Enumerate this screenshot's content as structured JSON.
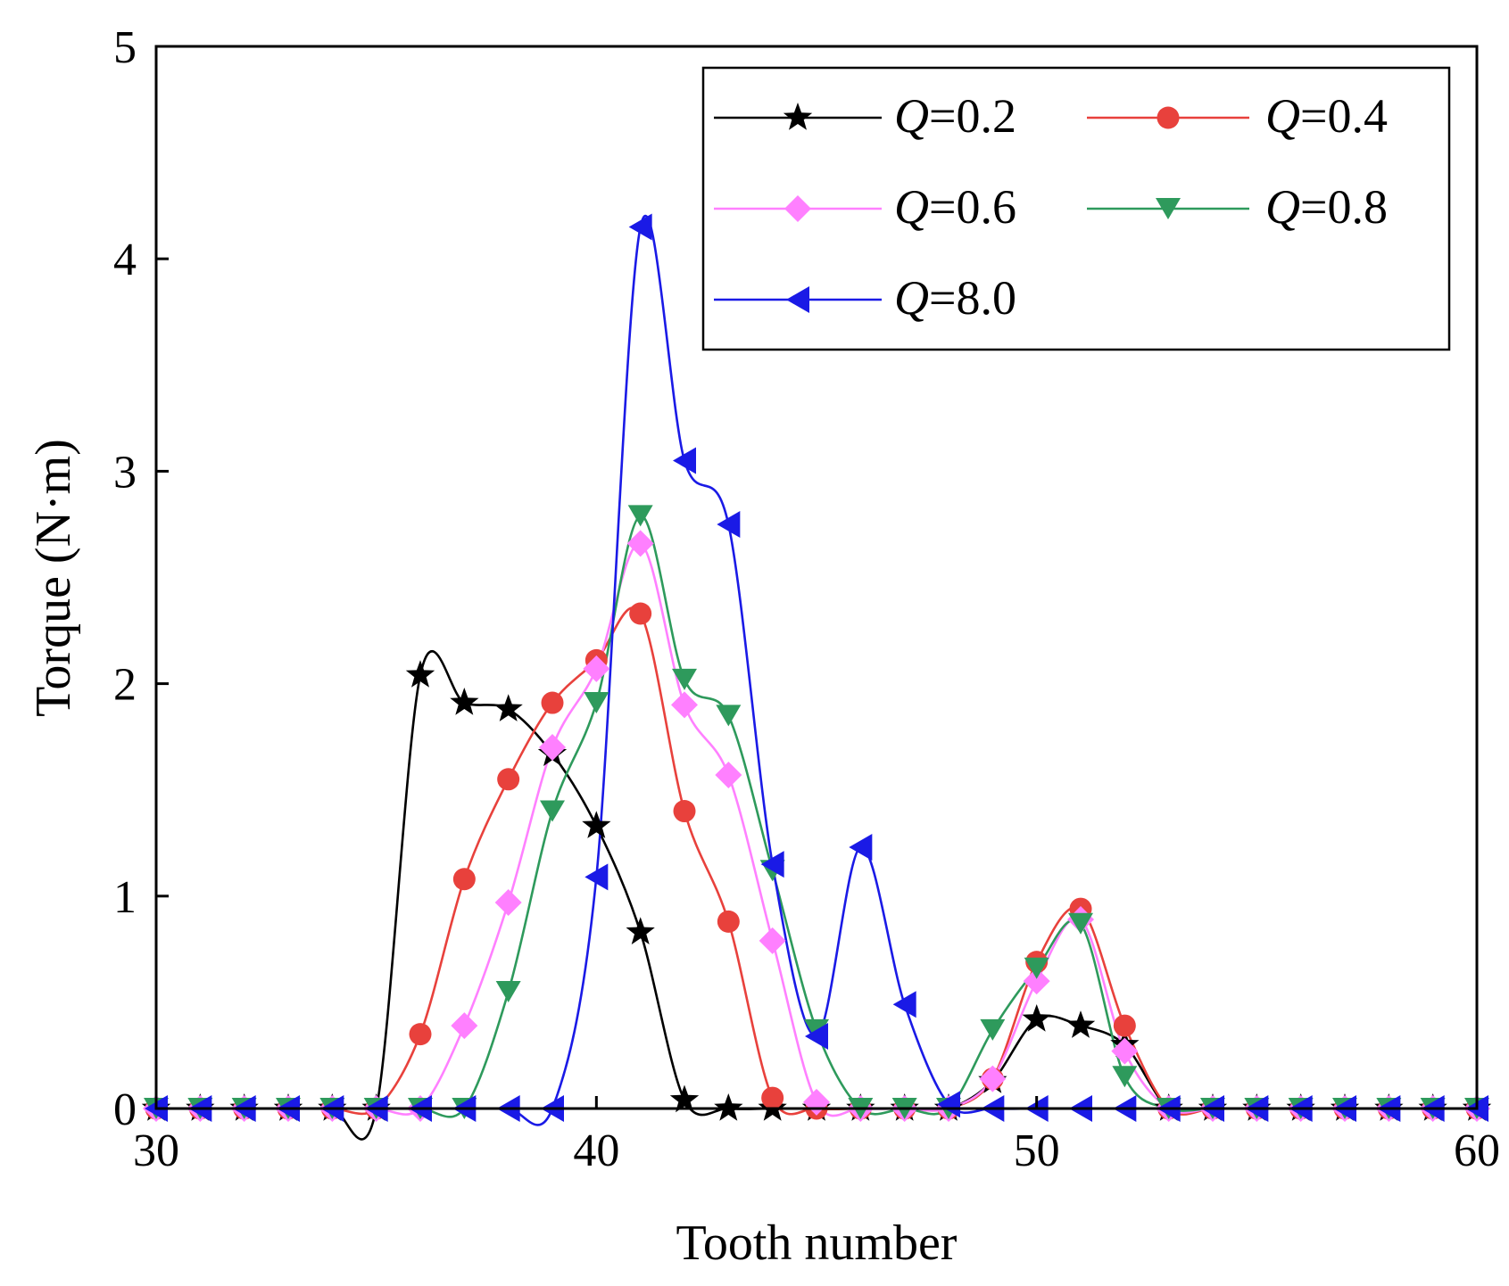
{
  "chart_data": {
    "type": "line",
    "title": "",
    "xlabel": "Tooth number",
    "ylabel": "Torque (N·m)",
    "xlim": [
      30,
      60
    ],
    "ylim": [
      0,
      5
    ],
    "xticks": [
      30,
      40,
      50,
      60
    ],
    "yticks": [
      0,
      1,
      2,
      3,
      4,
      5
    ],
    "grid": false,
    "legend_position": "top-right",
    "x": [
      30,
      31,
      32,
      33,
      34,
      35,
      36,
      37,
      38,
      39,
      40,
      41,
      42,
      43,
      44,
      45,
      46,
      47,
      48,
      49,
      50,
      51,
      52,
      53,
      54,
      55,
      56,
      57,
      58,
      59,
      60
    ],
    "series": [
      {
        "name": "Q=0.2",
        "var": "Q",
        "label_value": "=0.2",
        "color": "#000000",
        "marker": "star",
        "values": [
          0,
          0,
          0,
          0,
          0,
          0,
          2.04,
          1.91,
          1.88,
          1.67,
          1.33,
          0.83,
          0.04,
          0,
          0,
          0,
          0,
          0,
          0,
          0.13,
          0.42,
          0.39,
          0.3,
          0,
          0,
          0,
          0,
          0,
          0,
          0,
          0
        ]
      },
      {
        "name": "Q=0.4",
        "var": "Q",
        "label_value": "=0.4",
        "color": "#e8413c",
        "marker": "circle",
        "values": [
          0,
          0,
          0,
          0,
          0,
          0,
          0.35,
          1.08,
          1.55,
          1.91,
          2.11,
          2.33,
          1.4,
          0.88,
          0.05,
          0,
          0,
          0,
          0,
          0.14,
          0.69,
          0.94,
          0.39,
          0,
          0,
          0,
          0,
          0,
          0,
          0,
          0
        ]
      },
      {
        "name": "Q=0.6",
        "var": "Q",
        "label_value": "=0.6",
        "color": "#ff80ff",
        "marker": "diamond",
        "values": [
          0,
          0,
          0,
          0,
          0,
          0,
          0,
          0.39,
          0.97,
          1.7,
          2.07,
          2.66,
          1.9,
          1.57,
          0.79,
          0.03,
          0,
          0,
          0,
          0.14,
          0.6,
          0.89,
          0.27,
          0,
          0,
          0,
          0,
          0,
          0,
          0,
          0
        ]
      },
      {
        "name": "Q=0.8",
        "var": "Q",
        "label_value": "=0.8",
        "color": "#2e9a5c",
        "marker": "triangle-down",
        "values": [
          0,
          0,
          0,
          0,
          0,
          0,
          0,
          0,
          0.55,
          1.4,
          1.91,
          2.79,
          2.02,
          1.85,
          1.12,
          0.37,
          0,
          0,
          0,
          0.37,
          0.66,
          0.87,
          0.15,
          0,
          0,
          0,
          0,
          0,
          0,
          0,
          0
        ]
      },
      {
        "name": "Q=8.0",
        "var": "Q",
        "label_value": "=8.0",
        "color": "#1a1ae6",
        "marker": "triangle-left",
        "values": [
          0,
          0,
          0,
          0,
          0,
          0,
          0,
          0,
          0,
          0,
          1.09,
          4.15,
          3.05,
          2.75,
          1.15,
          0.34,
          1.23,
          0.49,
          0.02,
          0,
          0,
          0,
          0,
          0,
          0,
          0,
          0,
          0,
          0,
          0,
          0
        ]
      }
    ]
  }
}
